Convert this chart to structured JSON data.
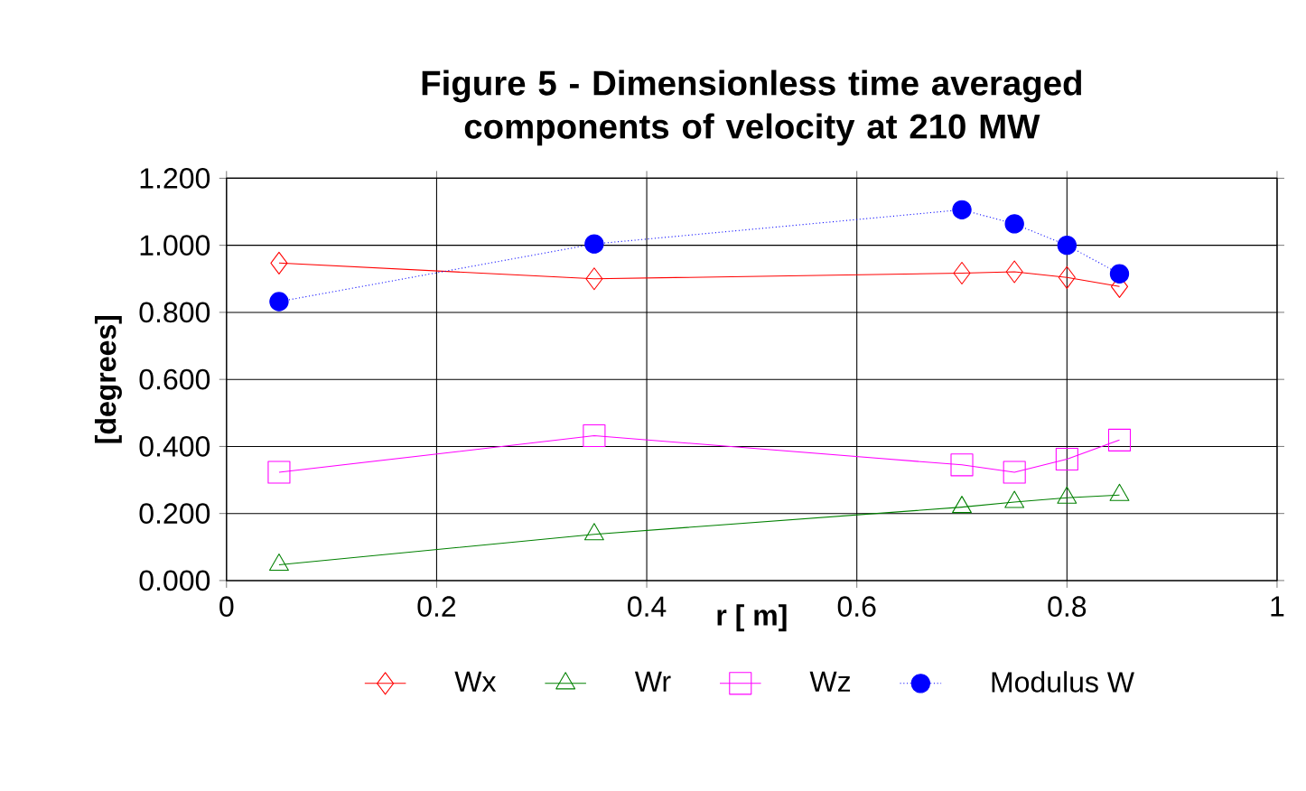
{
  "chart_data": {
    "type": "line",
    "title": "Figure 5 - Dimensionless time averaged components of velocity at 210 MW",
    "xlabel": "r [ m]",
    "ylabel": "[degrees]",
    "x": [
      0.05,
      0.35,
      0.7,
      0.75,
      0.8,
      0.85
    ],
    "series": [
      {
        "name": "Wx",
        "color": "#ff0000",
        "marker": "diamond",
        "line_style": "solid",
        "values": [
          0.947,
          0.9,
          0.917,
          0.921,
          0.904,
          0.877
        ]
      },
      {
        "name": "Wr",
        "color": "#008000",
        "marker": "triangle",
        "line_style": "solid",
        "values": [
          0.047,
          0.138,
          0.219,
          0.234,
          0.247,
          0.255
        ]
      },
      {
        "name": "Wz",
        "color": "#ff00ff",
        "marker": "square",
        "line_style": "solid",
        "values": [
          0.323,
          0.432,
          0.345,
          0.323,
          0.362,
          0.419
        ]
      },
      {
        "name": "Modulus W",
        "color": "#0000ff",
        "marker": "circle",
        "line_style": "dotted",
        "values": [
          0.832,
          1.004,
          1.106,
          1.064,
          1.0,
          0.915
        ]
      }
    ],
    "xlim": [
      0,
      1
    ],
    "ylim": [
      0,
      1.2
    ],
    "xticks": [
      0,
      0.2,
      0.4,
      0.6,
      0.8,
      1
    ],
    "yticks": [
      {
        "value": 0,
        "label": "0.000"
      },
      {
        "value": 0.2,
        "label": "0.200"
      },
      {
        "value": 0.4,
        "label": "0.400"
      },
      {
        "value": 0.6,
        "label": "0.600"
      },
      {
        "value": 0.8,
        "label": "0.800"
      },
      {
        "value": 1.0,
        "label": "1.000"
      },
      {
        "value": 1.2,
        "label": "1.200"
      }
    ],
    "grid": true,
    "legend": "bottom"
  }
}
